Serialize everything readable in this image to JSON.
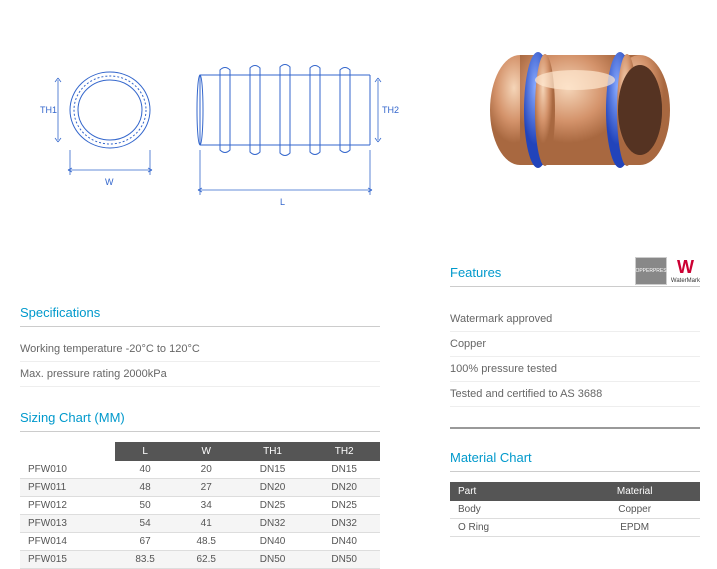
{
  "diagram": {
    "labels": {
      "th1": "TH1",
      "th2": "TH2",
      "w": "W",
      "l": "L"
    },
    "colors": {
      "line": "#3366cc",
      "arrow": "#3366cc"
    }
  },
  "product": {
    "body_color": "#d4936b",
    "ring_color": "#4466dd",
    "highlight": "#f0c8a8"
  },
  "specifications": {
    "title": "Specifications",
    "items": [
      "Working temperature -20°C to 120°C",
      "Max. pressure rating 2000kPa"
    ]
  },
  "sizing": {
    "title": "Sizing Chart (MM)",
    "columns": [
      "",
      "L",
      "W",
      "TH1",
      "TH2"
    ],
    "rows": [
      [
        "PFW010",
        "40",
        "20",
        "DN15",
        "DN15"
      ],
      [
        "PFW011",
        "48",
        "27",
        "DN20",
        "DN20"
      ],
      [
        "PFW012",
        "50",
        "34",
        "DN25",
        "DN25"
      ],
      [
        "PFW013",
        "54",
        "41",
        "DN32",
        "DN32"
      ],
      [
        "PFW014",
        "67",
        "48.5",
        "DN40",
        "DN40"
      ],
      [
        "PFW015",
        "83.5",
        "62.5",
        "DN50",
        "DN50"
      ]
    ]
  },
  "features": {
    "title": "Features",
    "items": [
      "Watermark approved",
      "Copper",
      "100% pressure tested",
      "Tested and certified to AS 3688"
    ],
    "badges": {
      "copperpress": "COPPERPRESS",
      "watermark": "W",
      "watermark_label": "WaterMark"
    }
  },
  "material": {
    "title": "Material Chart",
    "columns": [
      "Part",
      "Material"
    ],
    "rows": [
      [
        "Body",
        "Copper"
      ],
      [
        "O Ring",
        "EPDM"
      ]
    ]
  }
}
